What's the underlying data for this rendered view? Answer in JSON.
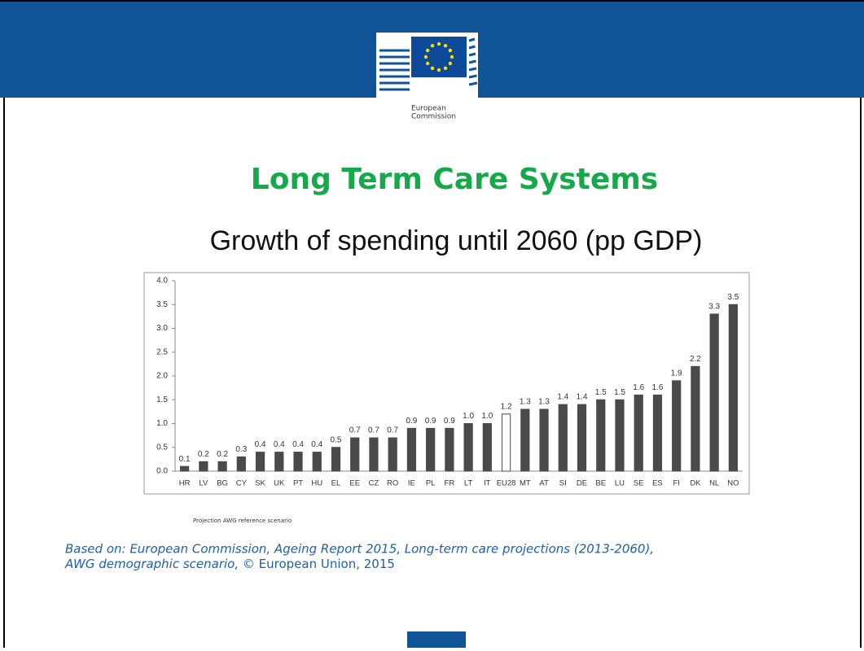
{
  "slide": {
    "logo_text": [
      "European",
      "Commission"
    ],
    "title": "Long Term Care Systems",
    "subtitle": "Growth of spending until 2060 (pp GDP)",
    "caption": "Projection AWG reference scenario",
    "source_italic": [
      "Based on: European Commission, Ageing Report 2015, Long-term care projections (2013-2060),",
      "AWG demographic scenario,"
    ],
    "source_plain": "© European Union, 2015"
  },
  "chart_data": {
    "type": "bar",
    "categories": [
      "HR",
      "LV",
      "BG",
      "CY",
      "SK",
      "UK",
      "PT",
      "HU",
      "EL",
      "EE",
      "CZ",
      "RO",
      "IE",
      "PL",
      "FR",
      "LT",
      "IT",
      "EU28",
      "MT",
      "AT",
      "SI",
      "DE",
      "BE",
      "LU",
      "SE",
      "ES",
      "FI",
      "DK",
      "NL",
      "NO"
    ],
    "values": [
      0.1,
      0.2,
      0.2,
      0.3,
      0.4,
      0.4,
      0.4,
      0.4,
      0.5,
      0.7,
      0.7,
      0.7,
      0.9,
      0.9,
      0.9,
      1.0,
      1.0,
      1.2,
      1.3,
      1.3,
      1.4,
      1.4,
      1.5,
      1.5,
      1.6,
      1.6,
      1.9,
      2.2,
      3.3,
      3.5
    ],
    "value_labels": [
      "0.1",
      "0.2",
      "0.2",
      "0.3",
      "0.4",
      "0.4",
      "0.4",
      "0.4",
      "0.5",
      "0.7",
      "0.7",
      "0.7",
      "0.9",
      "0.9",
      "0.9",
      "1.0",
      "1.0",
      "1.2",
      "1.3",
      "1.3",
      "1.4",
      "1.4",
      "1.5",
      "1.5",
      "1.6",
      "1.6",
      "1.9",
      "2.2",
      "3.3",
      "3.5"
    ],
    "colors": [
      "#4a4a4a",
      "#4a4a4a",
      "#4a4a4a",
      "#4a4a4a",
      "#4a4a4a",
      "#4a4a4a",
      "#4a4a4a",
      "#4a4a4a",
      "#4a4a4a",
      "#4a4a4a",
      "#4a4a4a",
      "#4a4a4a",
      "#4a4a4a",
      "#4a4a4a",
      "#4a4a4a",
      "#4a4a4a",
      "#4a4a4a",
      "#ffffff",
      "#4a4a4a",
      "#4a4a4a",
      "#4a4a4a",
      "#4a4a4a",
      "#4a4a4a",
      "#4a4a4a",
      "#4a4a4a",
      "#4a4a4a",
      "#4a4a4a",
      "#4a4a4a",
      "#4a4a4a",
      "#4a4a4a"
    ],
    "ylim": [
      0,
      4
    ],
    "yticks": [
      {
        "value": 0,
        "label": "0.0"
      },
      0.5,
      {
        "value": 1,
        "label": "1.0"
      },
      1.5,
      {
        "value": 2,
        "label": "2.0"
      },
      2.5,
      {
        "value": 3,
        "label": "3.0"
      },
      3.5,
      {
        "value": 4,
        "label": "4.0"
      }
    ],
    "grid": false
  }
}
